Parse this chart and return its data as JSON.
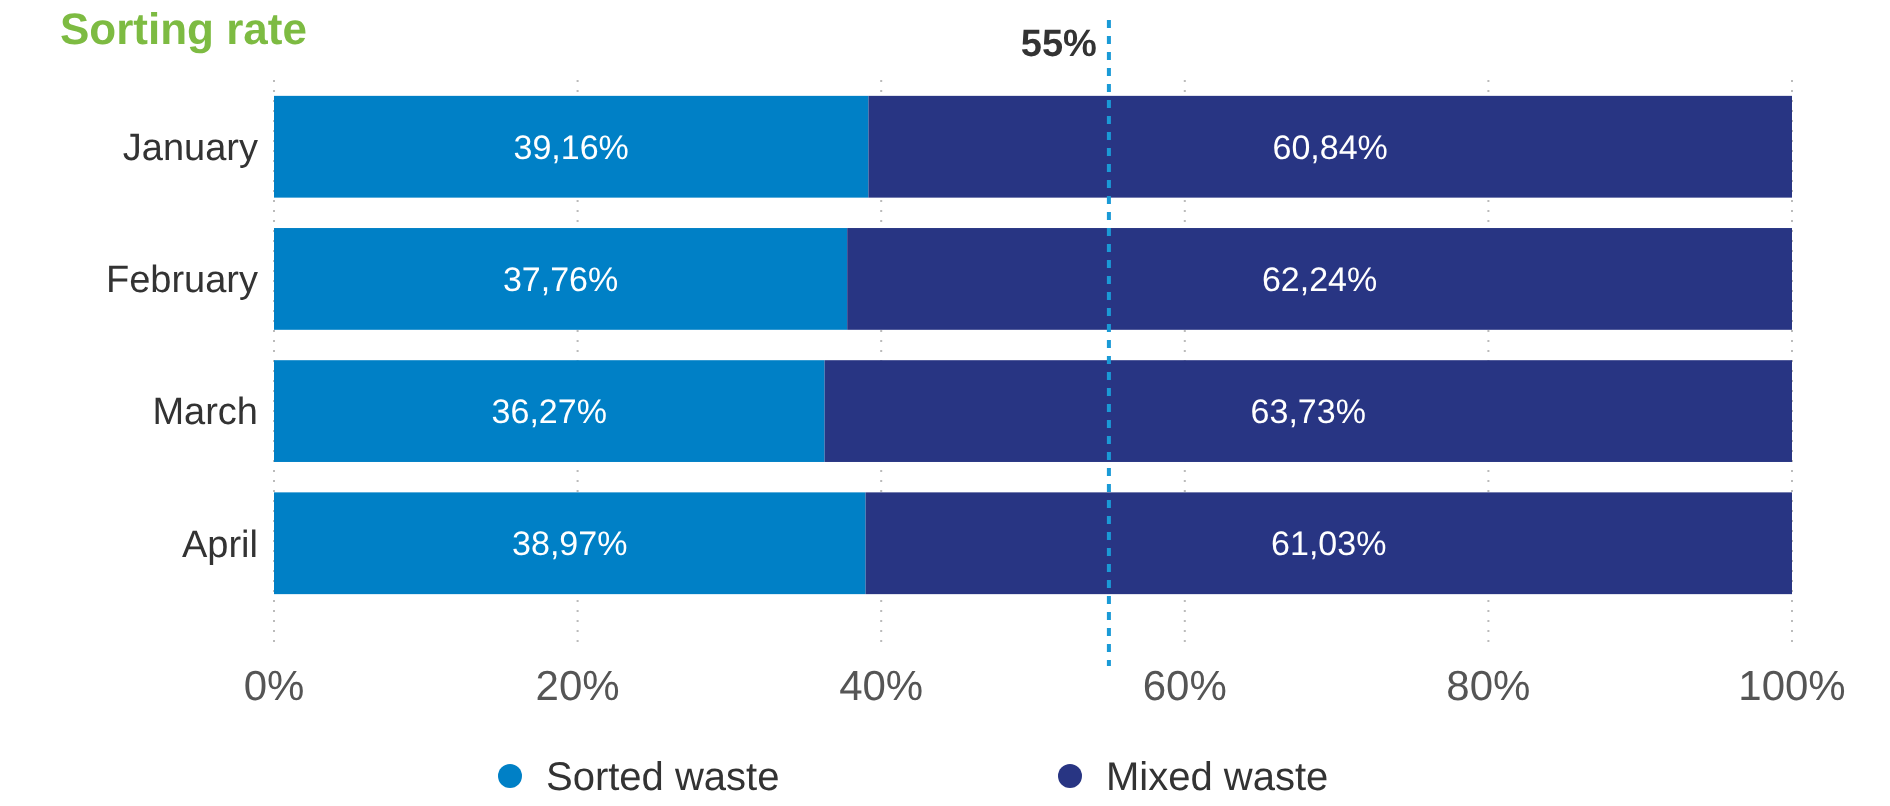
{
  "chart_data": {
    "type": "bar",
    "orientation": "horizontal",
    "stacked": true,
    "title": "Sorting rate",
    "categories": [
      "January",
      "February",
      "March",
      "April"
    ],
    "series": [
      {
        "name": "Sorted waste",
        "color": "#0080c6",
        "values": [
          39.16,
          37.76,
          36.27,
          38.97
        ],
        "value_labels": [
          "39,16%",
          "37,76%",
          "36,27%",
          "38,97%"
        ]
      },
      {
        "name": "Mixed waste",
        "color": "#283583",
        "values": [
          60.84,
          62.24,
          63.73,
          61.03
        ],
        "value_labels": [
          "60,84%",
          "62,24%",
          "63,73%",
          "61,03%"
        ]
      }
    ],
    "xlim": [
      0,
      100
    ],
    "xticks": [
      {
        "value": 0,
        "label": "0%"
      },
      {
        "value": 20,
        "label": "20%"
      },
      {
        "value": 40,
        "label": "40%"
      },
      {
        "value": 60,
        "label": "60%"
      },
      {
        "value": 80,
        "label": "80%"
      },
      {
        "value": 100,
        "label": "100%"
      }
    ],
    "grid": "x",
    "legend": "bottom",
    "ref_lines": [
      {
        "axis": "x",
        "value": 55,
        "label": "55%",
        "color": "#1a9ad6",
        "line_style": "dashed"
      }
    ]
  }
}
